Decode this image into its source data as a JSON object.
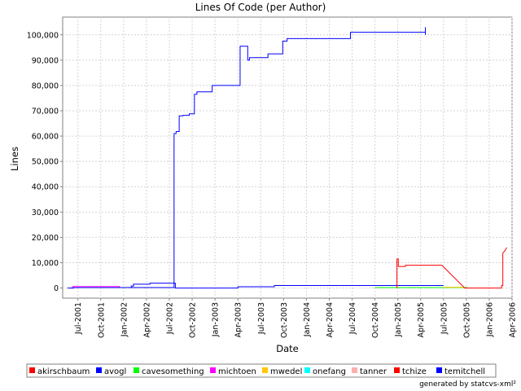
{
  "chart_data": {
    "type": "line",
    "title": "Lines Of Code (per Author)",
    "xlabel": "Date",
    "ylabel": "Lines",
    "grid": true,
    "x_ticks": [
      "Jul-2001",
      "Oct-2001",
      "Jan-2002",
      "Apr-2002",
      "Jul-2002",
      "Oct-2002",
      "Jan-2003",
      "Apr-2003",
      "Jul-2003",
      "Oct-2003",
      "Jan-2004",
      "Apr-2004",
      "Jul-2004",
      "Oct-2004",
      "Jan-2005",
      "Apr-2005",
      "Jul-2005",
      "Oct-2005",
      "Jan-2006",
      "Apr-2006"
    ],
    "xlim": [
      "2001-05-01",
      "2006-04-01"
    ],
    "ylim": [
      -4000,
      107000
    ],
    "y_ticks": [
      0,
      10000,
      20000,
      30000,
      40000,
      50000,
      60000,
      70000,
      80000,
      90000,
      100000
    ],
    "y_tick_labels": [
      "0",
      "10,000",
      "20,000",
      "30,000",
      "40,000",
      "50,000",
      "60,000",
      "70,000",
      "80,000",
      "90,000",
      "100,000"
    ],
    "series": [
      {
        "name": "akirschbaum",
        "color": "#ff0000",
        "points": []
      },
      {
        "name": "avogl",
        "color": "#0000ff",
        "points": [
          [
            "2002-02-01",
            0
          ],
          [
            "2002-02-01",
            800
          ],
          [
            "2002-02-10",
            800
          ],
          [
            "2002-02-10",
            1500
          ],
          [
            "2002-04-15",
            1500
          ],
          [
            "2002-04-15",
            1900
          ],
          [
            "2002-07-25",
            1900
          ],
          [
            "2002-07-25",
            0
          ],
          [
            "2003-04-01",
            0
          ],
          [
            "2003-04-01",
            500
          ],
          [
            "2003-08-25",
            500
          ],
          [
            "2003-08-25",
            1000
          ],
          [
            "2005-07-01",
            1000
          ]
        ]
      },
      {
        "name": "cavesomething",
        "color": "#00ff00",
        "points": [
          [
            "2004-10-01",
            200
          ],
          [
            "2005-10-05",
            200
          ]
        ]
      },
      {
        "name": "michtoen",
        "color": "#ff00ff",
        "points": [
          [
            "2001-06-01",
            0
          ],
          [
            "2001-06-10",
            0
          ],
          [
            "2001-06-10",
            600
          ],
          [
            "2001-12-15",
            600
          ],
          [
            "2001-12-15",
            0
          ]
        ]
      },
      {
        "name": "mwedel",
        "color": "#ffc800",
        "points": [
          [
            "2005-07-01",
            300
          ],
          [
            "2005-09-20",
            300
          ]
        ]
      },
      {
        "name": "onefang",
        "color": "#00ffff",
        "points": []
      },
      {
        "name": "tanner",
        "color": "#ffafaf",
        "points": []
      },
      {
        "name": "tchize",
        "color": "#ff0000",
        "points": [
          [
            "2004-12-28",
            0
          ],
          [
            "2004-12-28",
            11500
          ],
          [
            "2005-01-03",
            11500
          ],
          [
            "2005-01-03",
            8500
          ],
          [
            "2005-02-01",
            8500
          ],
          [
            "2005-02-01",
            9000
          ],
          [
            "2005-06-25",
            9000
          ],
          [
            "2005-09-25",
            0
          ],
          [
            "2006-02-20",
            0
          ],
          [
            "2006-02-20",
            1000
          ],
          [
            "2006-02-25",
            1000
          ],
          [
            "2006-02-25",
            13800
          ],
          [
            "2006-03-05",
            15000
          ],
          [
            "2006-03-10",
            16000
          ]
        ]
      },
      {
        "name": "temitchell",
        "color": "#0000ff",
        "points": [
          [
            "2001-05-20",
            0
          ],
          [
            "2001-06-15",
            0
          ],
          [
            "2001-06-15",
            200
          ],
          [
            "2002-07-20",
            200
          ],
          [
            "2002-07-20",
            0
          ],
          [
            "2002-07-20",
            61000
          ],
          [
            "2002-07-28",
            61000
          ],
          [
            "2002-07-28",
            61800
          ],
          [
            "2002-08-10",
            61800
          ],
          [
            "2002-08-10",
            68000
          ],
          [
            "2002-08-25",
            68000
          ],
          [
            "2002-08-25",
            68200
          ],
          [
            "2002-09-20",
            68200
          ],
          [
            "2002-09-20",
            68800
          ],
          [
            "2002-10-10",
            68800
          ],
          [
            "2002-10-10",
            76500
          ],
          [
            "2002-10-20",
            76500
          ],
          [
            "2002-10-20",
            77500
          ],
          [
            "2002-12-20",
            77500
          ],
          [
            "2002-12-20",
            80000
          ],
          [
            "2003-04-10",
            80000
          ],
          [
            "2003-04-10",
            95500
          ],
          [
            "2003-05-10",
            95500
          ],
          [
            "2003-05-10",
            90000
          ],
          [
            "2003-05-17",
            90000
          ],
          [
            "2003-05-17",
            91000
          ],
          [
            "2003-07-30",
            91000
          ],
          [
            "2003-07-30",
            92500
          ],
          [
            "2003-09-28",
            92500
          ],
          [
            "2003-09-28",
            97500
          ],
          [
            "2003-10-15",
            97500
          ],
          [
            "2003-10-15",
            98500
          ],
          [
            "2004-06-25",
            98500
          ],
          [
            "2004-06-25",
            101000
          ],
          [
            "2005-04-20",
            101000
          ],
          [
            "2005-04-20",
            103000
          ],
          [
            "2005-04-20",
            100000
          ]
        ]
      }
    ],
    "legend": {
      "placement": "bottom",
      "entries": [
        {
          "name": "akirschbaum",
          "color": "#ff0000"
        },
        {
          "name": "avogl",
          "color": "#0000ff"
        },
        {
          "name": "cavesomething",
          "color": "#00ff00"
        },
        {
          "name": "michtoen",
          "color": "#ff00ff"
        },
        {
          "name": "mwedel",
          "color": "#ffc800"
        },
        {
          "name": "onefang",
          "color": "#00ffff"
        },
        {
          "name": "tanner",
          "color": "#ffafaf"
        },
        {
          "name": "tchize",
          "color": "#ff0000"
        },
        {
          "name": "temitchell",
          "color": "#0000ff"
        }
      ]
    }
  },
  "footer": "generated by statcvs-xml²"
}
